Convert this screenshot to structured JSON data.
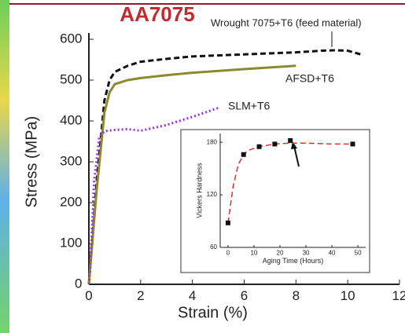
{
  "chart_data": [
    {
      "type": "line",
      "title": "AA7075",
      "x_label": "Strain (%)",
      "y_label": "Stress (MPa)",
      "xlim": [
        0,
        12
      ],
      "xticks": [
        0,
        2,
        4,
        6,
        8,
        10,
        12
      ],
      "ylim": [
        0,
        600
      ],
      "yticks": [
        0,
        100,
        200,
        300,
        400,
        500,
        600
      ],
      "series": [
        {
          "name": "Wrought 7075+T6 (feed material)",
          "color": "#111111",
          "style": "dashed",
          "x": [
            0,
            0.3,
            0.6,
            0.8,
            1,
            1.5,
            2,
            3,
            4,
            6,
            8,
            9,
            9.5,
            10,
            10.5
          ],
          "values": [
            0,
            250,
            450,
            500,
            520,
            535,
            545,
            552,
            558,
            563,
            568,
            572,
            573,
            572,
            563
          ]
        },
        {
          "name": "AFSD+T6",
          "color": "#8c8a2c",
          "style": "solid",
          "x": [
            0,
            0.3,
            0.6,
            0.8,
            1,
            1.5,
            2,
            3,
            4,
            6,
            8
          ],
          "values": [
            0,
            230,
            420,
            470,
            490,
            500,
            505,
            512,
            518,
            527,
            535
          ]
        },
        {
          "name": "SLM+T6",
          "color": "#9b30e0",
          "style": "dotted",
          "x": [
            0,
            0.1,
            0.2,
            0.4,
            0.6,
            1,
            1.5,
            2,
            3,
            4,
            5
          ],
          "values": [
            0,
            100,
            250,
            360,
            375,
            378,
            380,
            376,
            390,
            410,
            432
          ]
        }
      ]
    },
    {
      "type": "scatter",
      "x_label": "Aging Time (Hours)",
      "y_label": "Vickers Hardness",
      "xlim": [
        -3,
        53
      ],
      "xticks": [
        0,
        10,
        20,
        30,
        40,
        50
      ],
      "ylim": [
        60,
        190
      ],
      "yticks": [
        60,
        120,
        180
      ],
      "series": [
        {
          "color": "#e03030",
          "style": "dashed",
          "x": [
            0,
            2,
            4,
            6,
            8,
            12,
            18,
            24,
            30,
            40,
            48
          ],
          "values": [
            88,
            130,
            155,
            166,
            171,
            175,
            178,
            179,
            179,
            178,
            178
          ]
        },
        {
          "color": "#111111",
          "style": "markers",
          "x": [
            0,
            6,
            12,
            18,
            24,
            48
          ],
          "values": [
            88,
            166,
            175,
            178,
            182,
            178
          ]
        }
      ]
    }
  ]
}
